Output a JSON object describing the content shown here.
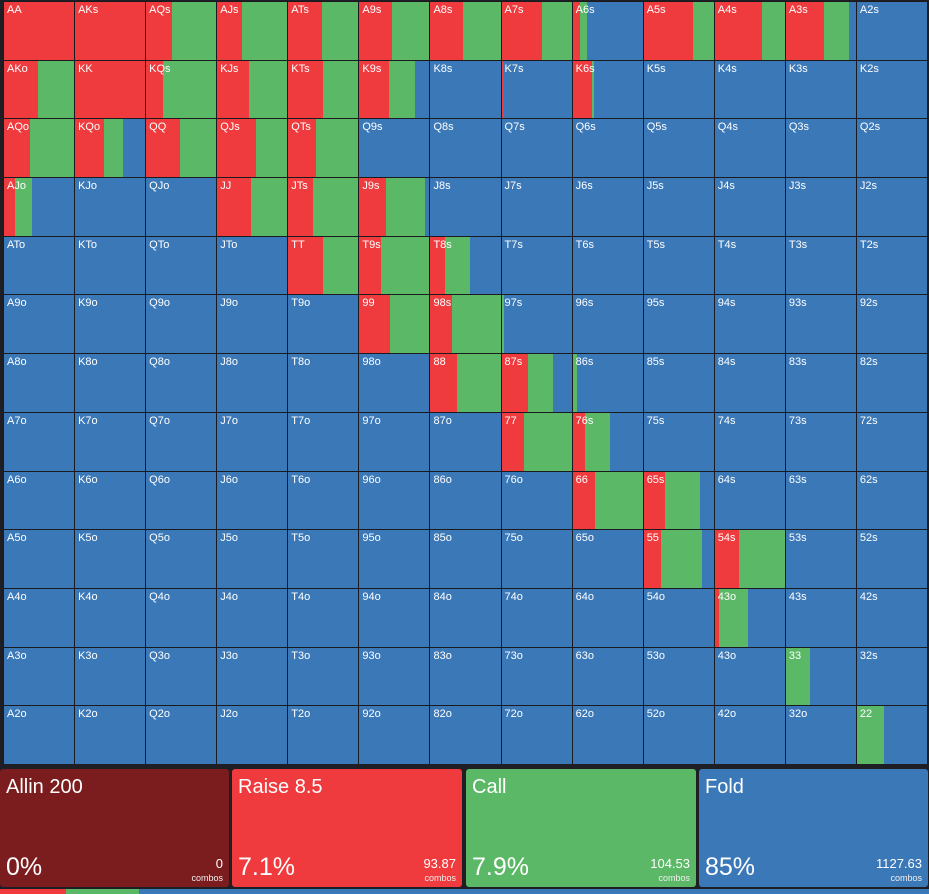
{
  "colors": {
    "allin": "#7b1c1e",
    "raise": "#ef3b3e",
    "call": "#5bb866",
    "fold": "#3b78b8"
  },
  "grid": {
    "rows": [
      [
        [
          "AA",
          1,
          0
        ],
        [
          "AKs",
          1,
          0
        ],
        [
          "AQs",
          0.37,
          0.63
        ],
        [
          "AJs",
          0.36,
          0.64
        ],
        [
          "ATs",
          0.48,
          0.52
        ],
        [
          "A9s",
          0.47,
          0.53
        ],
        [
          "A8s",
          0.47,
          0.53
        ],
        [
          "A7s",
          0.58,
          0.42
        ],
        [
          "A6s",
          0.11,
          0.1
        ],
        [
          "A5s",
          0.71,
          0.29
        ],
        [
          "A4s",
          0.68,
          0.32
        ],
        [
          "A3s",
          0.54,
          0.36
        ],
        [
          "A2s",
          0,
          0
        ]
      ],
      [
        [
          "AKo",
          0.48,
          0.52
        ],
        [
          "KK",
          1,
          0
        ],
        [
          "KQs",
          0.24,
          0.76
        ],
        [
          "KJs",
          0.45,
          0.55
        ],
        [
          "KTs",
          0.49,
          0.51
        ],
        [
          "K9s",
          0.42,
          0.38
        ],
        [
          "K8s",
          0,
          0
        ],
        [
          "K7s",
          0.04,
          0
        ],
        [
          "K6s",
          0.27,
          0.03
        ],
        [
          "K5s",
          0,
          0
        ],
        [
          "K4s",
          0,
          0
        ],
        [
          "K3s",
          0,
          0
        ],
        [
          "K2s",
          0,
          0
        ]
      ],
      [
        [
          "AQo",
          0.37,
          0.63
        ],
        [
          "KQo",
          0.41,
          0.28
        ],
        [
          "QQ",
          0.49,
          0.51
        ],
        [
          "QJs",
          0.55,
          0.45
        ],
        [
          "QTs",
          0.39,
          0.61
        ],
        [
          "Q9s",
          0,
          0
        ],
        [
          "Q8s",
          0,
          0
        ],
        [
          "Q7s",
          0,
          0
        ],
        [
          "Q6s",
          0,
          0
        ],
        [
          "Q5s",
          0,
          0
        ],
        [
          "Q4s",
          0,
          0
        ],
        [
          "Q3s",
          0,
          0
        ],
        [
          "Q2s",
          0,
          0
        ]
      ],
      [
        [
          "AJo",
          0.15,
          0.25
        ],
        [
          "KJo",
          0,
          0
        ],
        [
          "QJo",
          0,
          0
        ],
        [
          "JJ",
          0.48,
          0.52
        ],
        [
          "JTs",
          0.35,
          0.65
        ],
        [
          "J9s",
          0.38,
          0.55
        ],
        [
          "J8s",
          0,
          0
        ],
        [
          "J7s",
          0,
          0
        ],
        [
          "J6s",
          0,
          0
        ],
        [
          "J5s",
          0,
          0
        ],
        [
          "J4s",
          0,
          0
        ],
        [
          "J3s",
          0,
          0
        ],
        [
          "J2s",
          0,
          0
        ]
      ],
      [
        [
          "ATo",
          0,
          0
        ],
        [
          "KTo",
          0,
          0
        ],
        [
          "QTo",
          0,
          0
        ],
        [
          "JTo",
          0,
          0
        ],
        [
          "TT",
          0.49,
          0.51
        ],
        [
          "T9s",
          0.31,
          0.69
        ],
        [
          "T8s",
          0.21,
          0.35
        ],
        [
          "T7s",
          0,
          0
        ],
        [
          "T6s",
          0,
          0
        ],
        [
          "T5s",
          0,
          0
        ],
        [
          "T4s",
          0,
          0
        ],
        [
          "T3s",
          0,
          0
        ],
        [
          "T2s",
          0,
          0
        ]
      ],
      [
        [
          "A9o",
          0,
          0
        ],
        [
          "K9o",
          0,
          0
        ],
        [
          "Q9o",
          0,
          0
        ],
        [
          "J9o",
          0,
          0
        ],
        [
          "T9o",
          0,
          0
        ],
        [
          "99",
          0.43,
          0.57
        ],
        [
          "98s",
          0.31,
          0.69
        ],
        [
          "97s",
          0,
          0.04
        ],
        [
          "96s",
          0,
          0
        ],
        [
          "95s",
          0,
          0
        ],
        [
          "94s",
          0,
          0
        ],
        [
          "93s",
          0,
          0
        ],
        [
          "92s",
          0,
          0
        ]
      ],
      [
        [
          "A8o",
          0,
          0
        ],
        [
          "K8o",
          0,
          0
        ],
        [
          "Q8o",
          0,
          0
        ],
        [
          "J8o",
          0,
          0
        ],
        [
          "T8o",
          0,
          0
        ],
        [
          "98o",
          0,
          0
        ],
        [
          "88",
          0.38,
          0.62
        ],
        [
          "87s",
          0.38,
          0.36
        ],
        [
          "86s",
          0,
          0.06
        ],
        [
          "85s",
          0,
          0
        ],
        [
          "84s",
          0,
          0
        ],
        [
          "83s",
          0,
          0
        ],
        [
          "82s",
          0,
          0
        ]
      ],
      [
        [
          "A7o",
          0,
          0
        ],
        [
          "K7o",
          0,
          0
        ],
        [
          "Q7o",
          0,
          0
        ],
        [
          "J7o",
          0,
          0
        ],
        [
          "T7o",
          0,
          0
        ],
        [
          "97o",
          0,
          0
        ],
        [
          "87o",
          0,
          0
        ],
        [
          "77",
          0.32,
          0.68
        ],
        [
          "76s",
          0.17,
          0.36
        ],
        [
          "75s",
          0,
          0
        ],
        [
          "74s",
          0,
          0
        ],
        [
          "73s",
          0,
          0
        ],
        [
          "72s",
          0,
          0
        ]
      ],
      [
        [
          "A6o",
          0,
          0
        ],
        [
          "K6o",
          0,
          0
        ],
        [
          "Q6o",
          0,
          0
        ],
        [
          "J6o",
          0,
          0
        ],
        [
          "T6o",
          0,
          0
        ],
        [
          "96o",
          0,
          0
        ],
        [
          "86o",
          0,
          0
        ],
        [
          "76o",
          0,
          0
        ],
        [
          "66",
          0.32,
          0.68
        ],
        [
          "65s",
          0.3,
          0.5
        ],
        [
          "64s",
          0,
          0
        ],
        [
          "63s",
          0,
          0
        ],
        [
          "62s",
          0,
          0
        ]
      ],
      [
        [
          "A5o",
          0,
          0
        ],
        [
          "K5o",
          0,
          0
        ],
        [
          "Q5o",
          0,
          0
        ],
        [
          "J5o",
          0,
          0
        ],
        [
          "T5o",
          0,
          0
        ],
        [
          "95o",
          0,
          0
        ],
        [
          "85o",
          0,
          0
        ],
        [
          "75o",
          0,
          0
        ],
        [
          "65o",
          0,
          0
        ],
        [
          "55",
          0.25,
          0.58
        ],
        [
          "54s",
          0.35,
          0.65
        ],
        [
          "53s",
          0,
          0
        ],
        [
          "52s",
          0,
          0
        ]
      ],
      [
        [
          "A4o",
          0,
          0
        ],
        [
          "K4o",
          0,
          0
        ],
        [
          "Q4o",
          0,
          0
        ],
        [
          "J4o",
          0,
          0
        ],
        [
          "T4o",
          0,
          0
        ],
        [
          "94o",
          0,
          0
        ],
        [
          "84o",
          0,
          0
        ],
        [
          "74o",
          0,
          0
        ],
        [
          "64o",
          0,
          0
        ],
        [
          "54o",
          0,
          0
        ],
        [
          "43o",
          0.06,
          0.42
        ],
        [
          "43s",
          0,
          0
        ],
        [
          "42s",
          0,
          0
        ]
      ],
      [
        [
          "A3o",
          0,
          0
        ],
        [
          "K3o",
          0,
          0
        ],
        [
          "Q3o",
          0,
          0
        ],
        [
          "J3o",
          0,
          0
        ],
        [
          "T3o",
          0,
          0
        ],
        [
          "93o",
          0,
          0
        ],
        [
          "83o",
          0,
          0
        ],
        [
          "73o",
          0,
          0
        ],
        [
          "63o",
          0,
          0
        ],
        [
          "53o",
          0,
          0
        ],
        [
          "43o",
          0,
          0
        ],
        [
          "33",
          0,
          0.34
        ],
        [
          "32s",
          0,
          0
        ]
      ],
      [
        [
          "A2o",
          0,
          0
        ],
        [
          "K2o",
          0,
          0
        ],
        [
          "Q2o",
          0,
          0
        ],
        [
          "J2o",
          0,
          0
        ],
        [
          "T2o",
          0,
          0
        ],
        [
          "92o",
          0,
          0
        ],
        [
          "82o",
          0,
          0
        ],
        [
          "72o",
          0,
          0
        ],
        [
          "62o",
          0,
          0
        ],
        [
          "52o",
          0,
          0
        ],
        [
          "42o",
          0,
          0
        ],
        [
          "32o",
          0,
          0
        ],
        [
          "22",
          0,
          0.38
        ]
      ]
    ]
  },
  "actions": [
    {
      "key": "allin",
      "title": "Allin 200",
      "percent": "0%",
      "combos": "0",
      "combos_label": "combos"
    },
    {
      "key": "raise",
      "title": "Raise 8.5",
      "percent": "7.1%",
      "combos": "93.87",
      "combos_label": "combos"
    },
    {
      "key": "call",
      "title": "Call",
      "percent": "7.9%",
      "combos": "104.53",
      "combos_label": "combos"
    },
    {
      "key": "fold",
      "title": "Fold",
      "percent": "85%",
      "combos": "1127.63",
      "combos_label": "combos"
    }
  ],
  "bottom_bar": [
    {
      "key": "raise",
      "fraction": 0.071
    },
    {
      "key": "call",
      "fraction": 0.079
    },
    {
      "key": "fold",
      "fraction": 0.85
    }
  ]
}
